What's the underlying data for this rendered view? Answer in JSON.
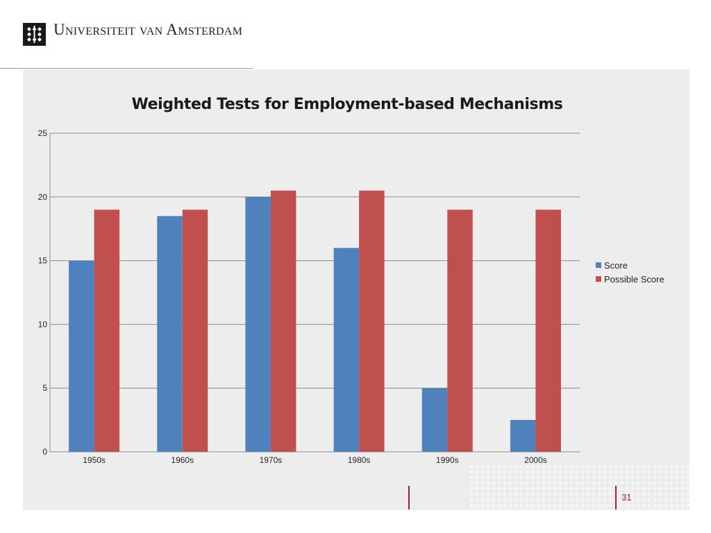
{
  "header": {
    "university_name": "Universiteit van Amsterdam"
  },
  "footer": {
    "page_number": "31"
  },
  "colors": {
    "score": "#4f81bd",
    "possible_score": "#c0504d",
    "accent": "#a31b3a",
    "panel": "#ededed"
  },
  "chart_data": {
    "type": "bar",
    "title": "Weighted Tests for Employment-based Mechanisms",
    "xlabel": "",
    "ylabel": "",
    "categories": [
      "1950s",
      "1960s",
      "1970s",
      "1980s",
      "1990s",
      "2000s"
    ],
    "series": [
      {
        "name": "Score",
        "values": [
          15,
          18.5,
          20,
          16,
          5,
          2.5
        ]
      },
      {
        "name": "Possible Score",
        "values": [
          19,
          19,
          20.5,
          20.5,
          19,
          19
        ]
      }
    ],
    "ylim": [
      0,
      25
    ],
    "yticks": [
      "0",
      "5",
      "10",
      "15",
      "20",
      "25"
    ],
    "grid": true,
    "legend": "right"
  }
}
